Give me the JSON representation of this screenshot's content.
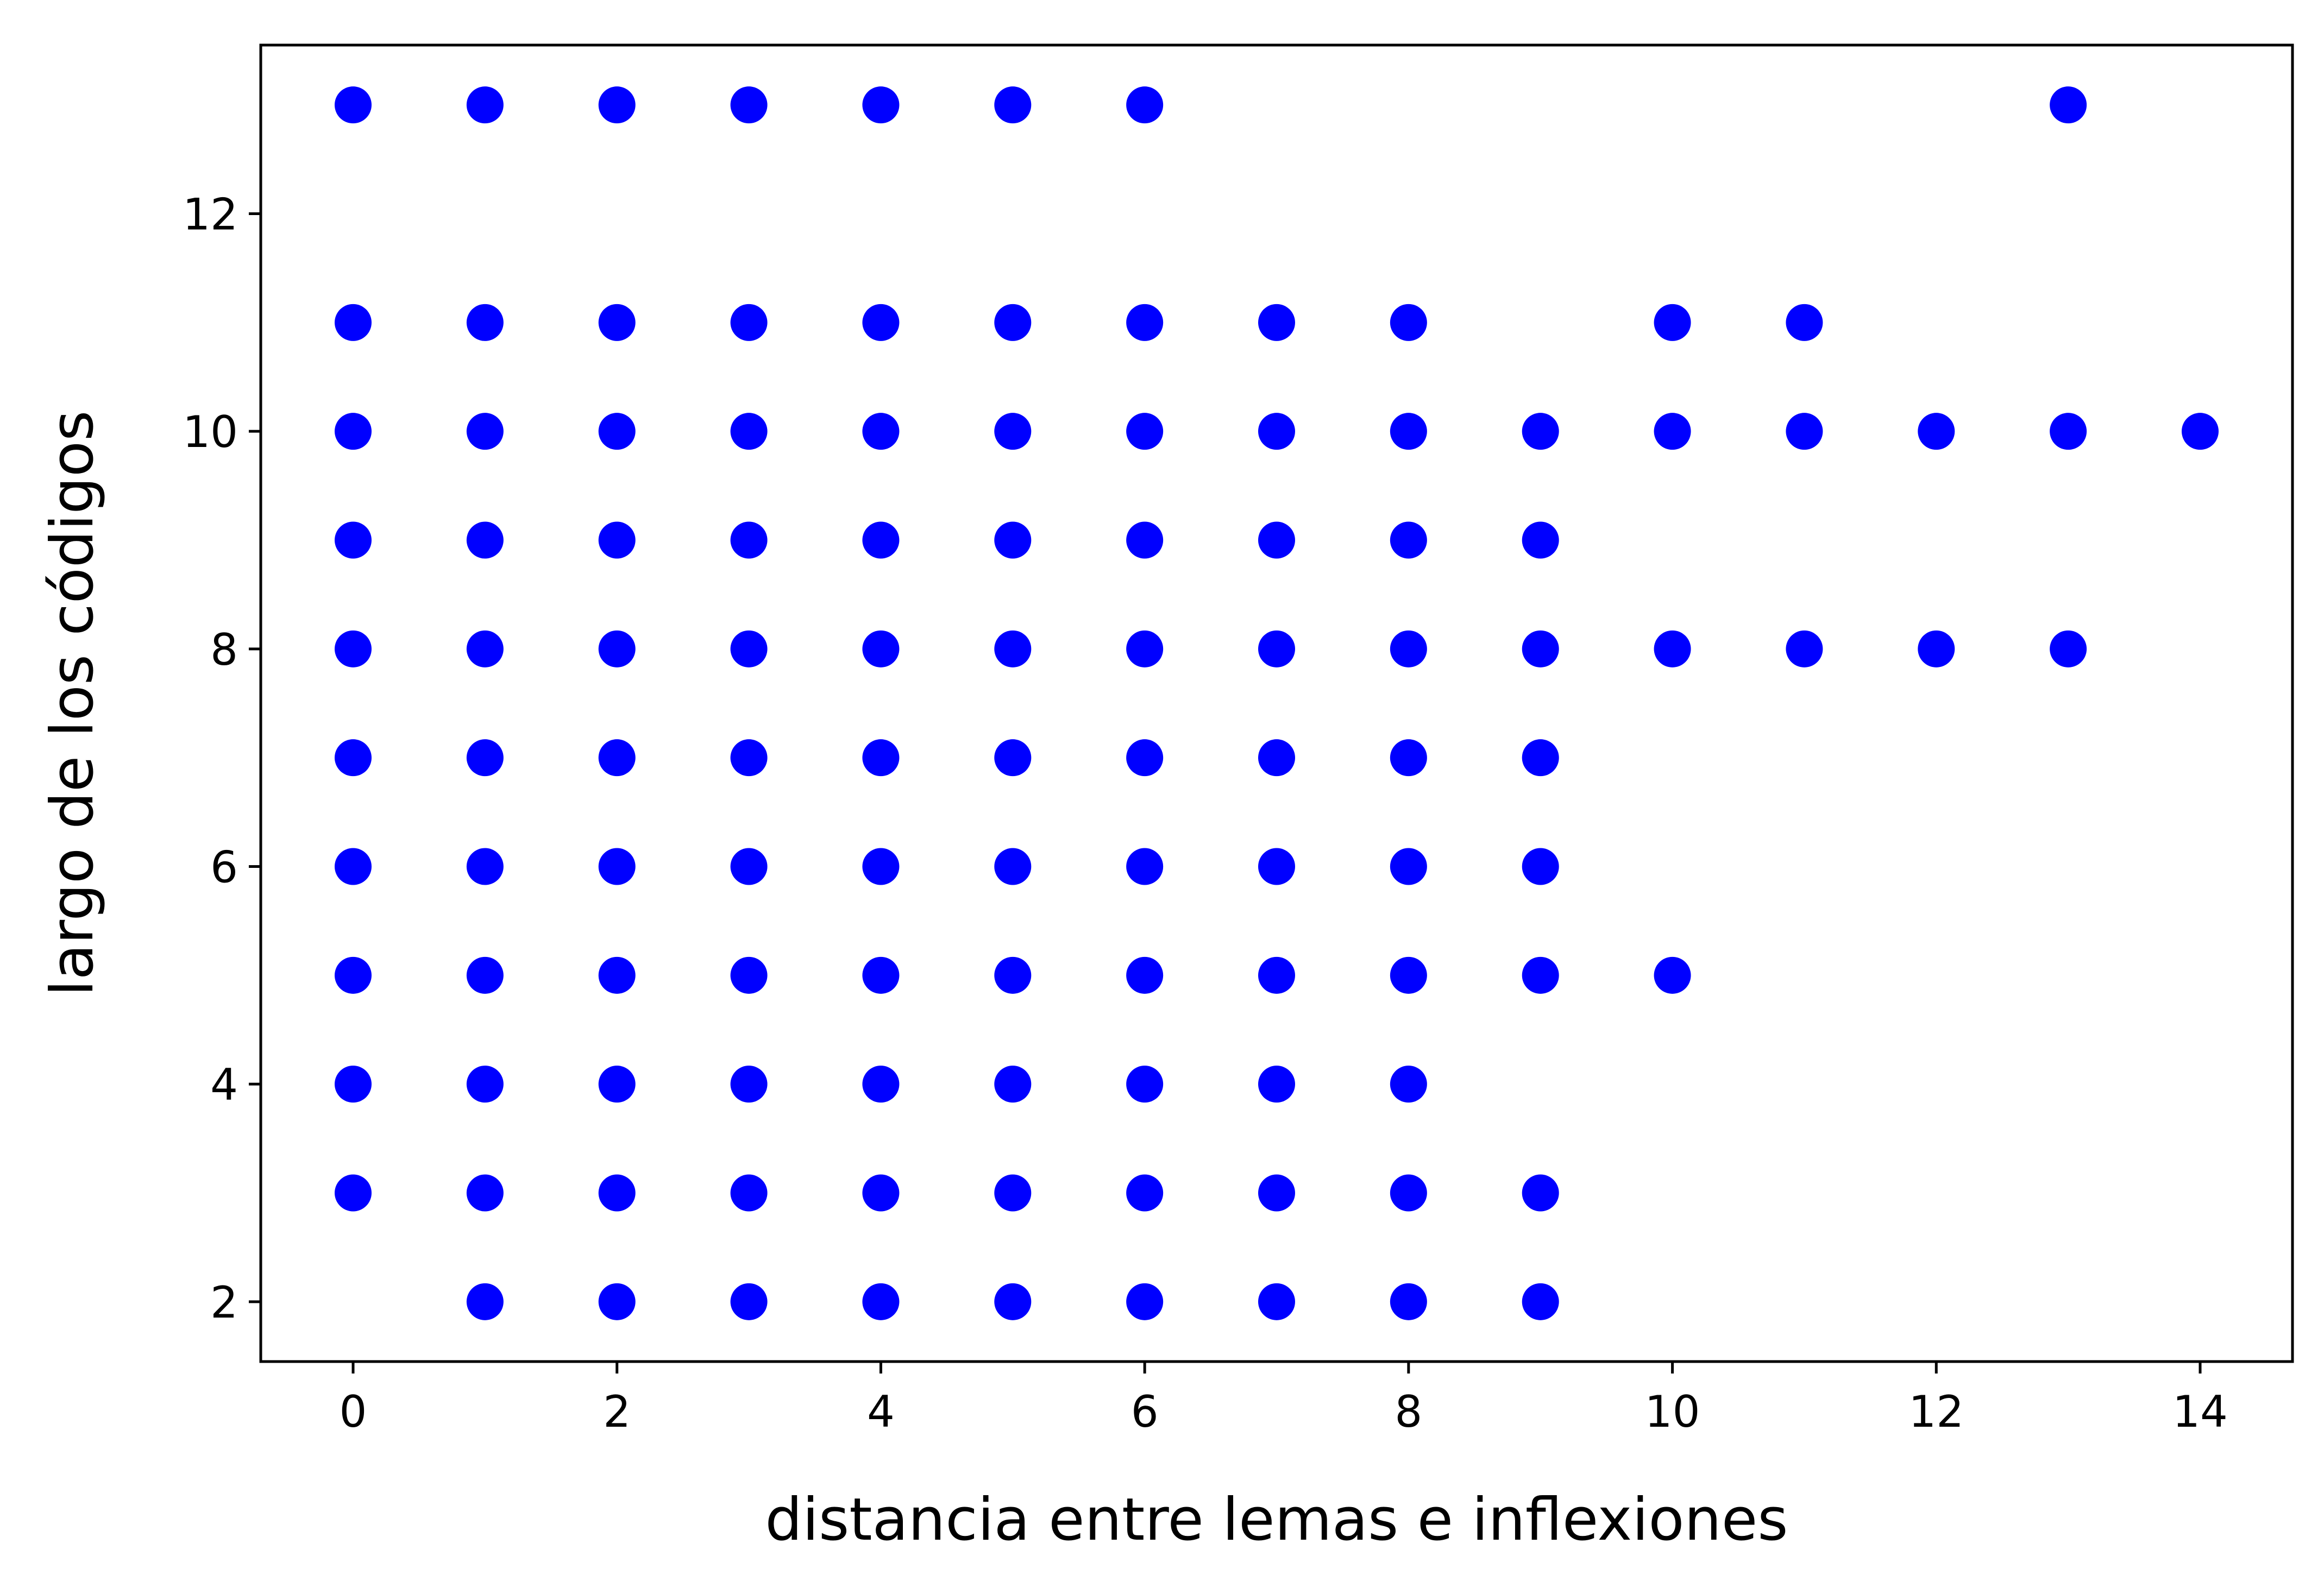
{
  "chart_data": {
    "type": "scatter",
    "title": "",
    "xlabel": "distancia entre lemas e inflexiones",
    "ylabel": "largo de los códigos",
    "xlim": [
      -0.7,
      14.7
    ],
    "ylim": [
      1.45,
      13.55
    ],
    "xticks": [
      0,
      2,
      4,
      6,
      8,
      10,
      12,
      14
    ],
    "yticks": [
      2,
      4,
      6,
      8,
      10,
      12
    ],
    "grid": false,
    "legend": "none",
    "marker_color": "#0000ff",
    "points": [
      [
        0,
        13
      ],
      [
        1,
        13
      ],
      [
        2,
        13
      ],
      [
        3,
        13
      ],
      [
        4,
        13
      ],
      [
        5,
        13
      ],
      [
        6,
        13
      ],
      [
        13,
        13
      ],
      [
        0,
        11
      ],
      [
        1,
        11
      ],
      [
        2,
        11
      ],
      [
        3,
        11
      ],
      [
        4,
        11
      ],
      [
        5,
        11
      ],
      [
        6,
        11
      ],
      [
        7,
        11
      ],
      [
        8,
        11
      ],
      [
        10,
        11
      ],
      [
        11,
        11
      ],
      [
        0,
        10
      ],
      [
        1,
        10
      ],
      [
        2,
        10
      ],
      [
        3,
        10
      ],
      [
        4,
        10
      ],
      [
        5,
        10
      ],
      [
        6,
        10
      ],
      [
        7,
        10
      ],
      [
        8,
        10
      ],
      [
        9,
        10
      ],
      [
        10,
        10
      ],
      [
        11,
        10
      ],
      [
        12,
        10
      ],
      [
        13,
        10
      ],
      [
        14,
        10
      ],
      [
        0,
        9
      ],
      [
        1,
        9
      ],
      [
        2,
        9
      ],
      [
        3,
        9
      ],
      [
        4,
        9
      ],
      [
        5,
        9
      ],
      [
        6,
        9
      ],
      [
        7,
        9
      ],
      [
        8,
        9
      ],
      [
        9,
        9
      ],
      [
        0,
        8
      ],
      [
        1,
        8
      ],
      [
        2,
        8
      ],
      [
        3,
        8
      ],
      [
        4,
        8
      ],
      [
        5,
        8
      ],
      [
        6,
        8
      ],
      [
        7,
        8
      ],
      [
        8,
        8
      ],
      [
        9,
        8
      ],
      [
        10,
        8
      ],
      [
        11,
        8
      ],
      [
        12,
        8
      ],
      [
        13,
        8
      ],
      [
        0,
        7
      ],
      [
        1,
        7
      ],
      [
        2,
        7
      ],
      [
        3,
        7
      ],
      [
        4,
        7
      ],
      [
        5,
        7
      ],
      [
        6,
        7
      ],
      [
        7,
        7
      ],
      [
        8,
        7
      ],
      [
        9,
        7
      ],
      [
        0,
        6
      ],
      [
        1,
        6
      ],
      [
        2,
        6
      ],
      [
        3,
        6
      ],
      [
        4,
        6
      ],
      [
        5,
        6
      ],
      [
        6,
        6
      ],
      [
        7,
        6
      ],
      [
        8,
        6
      ],
      [
        9,
        6
      ],
      [
        0,
        5
      ],
      [
        1,
        5
      ],
      [
        2,
        5
      ],
      [
        3,
        5
      ],
      [
        4,
        5
      ],
      [
        5,
        5
      ],
      [
        6,
        5
      ],
      [
        7,
        5
      ],
      [
        8,
        5
      ],
      [
        9,
        5
      ],
      [
        10,
        5
      ],
      [
        0,
        4
      ],
      [
        1,
        4
      ],
      [
        2,
        4
      ],
      [
        3,
        4
      ],
      [
        4,
        4
      ],
      [
        5,
        4
      ],
      [
        6,
        4
      ],
      [
        7,
        4
      ],
      [
        8,
        4
      ],
      [
        0,
        3
      ],
      [
        1,
        3
      ],
      [
        2,
        3
      ],
      [
        3,
        3
      ],
      [
        4,
        3
      ],
      [
        5,
        3
      ],
      [
        6,
        3
      ],
      [
        7,
        3
      ],
      [
        8,
        3
      ],
      [
        9,
        3
      ],
      [
        1,
        2
      ],
      [
        2,
        2
      ],
      [
        3,
        2
      ],
      [
        4,
        2
      ],
      [
        5,
        2
      ],
      [
        6,
        2
      ],
      [
        7,
        2
      ],
      [
        8,
        2
      ],
      [
        9,
        2
      ]
    ]
  }
}
